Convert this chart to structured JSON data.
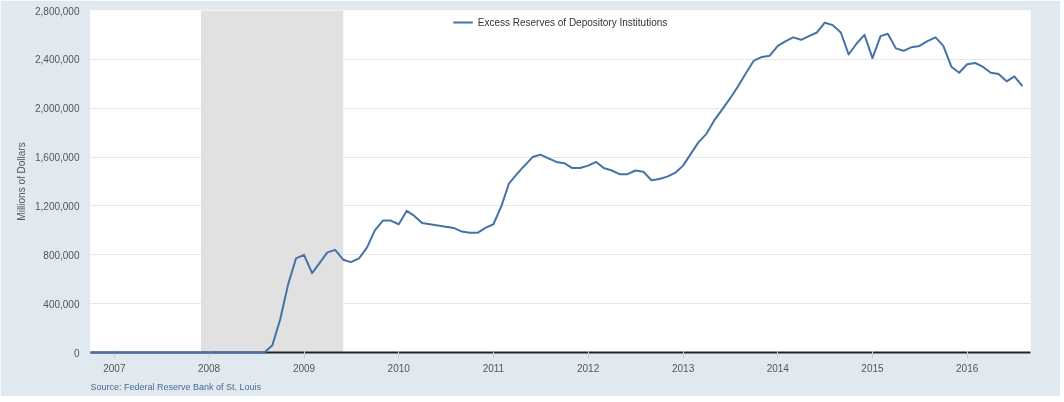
{
  "chart_data": {
    "type": "line",
    "ylabel": "Millions of Dollars",
    "annotations": [
      "Source: Federal Reserve Bank of St. Louis"
    ],
    "x": [
      "2006-10",
      "2007-06",
      "2008-01",
      "2008-08",
      "2008-09",
      "2008-10",
      "2008-11",
      "2008-12",
      "2009-01",
      "2009-02",
      "2009-03",
      "2009-04",
      "2009-05",
      "2009-06",
      "2009-07",
      "2009-08",
      "2009-09",
      "2009-10",
      "2009-11",
      "2009-12",
      "2010-01",
      "2010-02",
      "2010-03",
      "2010-04",
      "2010-05",
      "2010-06",
      "2010-07",
      "2010-08",
      "2010-09",
      "2010-10",
      "2010-11",
      "2010-12",
      "2011-01",
      "2011-02",
      "2011-03",
      "2011-04",
      "2011-05",
      "2011-06",
      "2011-07",
      "2011-08",
      "2011-09",
      "2011-10",
      "2011-11",
      "2011-12",
      "2012-01",
      "2012-02",
      "2012-03",
      "2012-04",
      "2012-05",
      "2012-06",
      "2012-07",
      "2012-08",
      "2012-09",
      "2012-10",
      "2012-11",
      "2012-12",
      "2013-01",
      "2013-02",
      "2013-03",
      "2013-04",
      "2013-05",
      "2013-06",
      "2013-07",
      "2013-08",
      "2013-09",
      "2013-10",
      "2013-11",
      "2013-12",
      "2014-01",
      "2014-02",
      "2014-03",
      "2014-04",
      "2014-05",
      "2014-06",
      "2014-07",
      "2014-08",
      "2014-09",
      "2014-10",
      "2014-11",
      "2014-12",
      "2015-01",
      "2015-02",
      "2015-03",
      "2015-04",
      "2015-05",
      "2015-06",
      "2015-07",
      "2015-08",
      "2015-09",
      "2015-10",
      "2015-11",
      "2015-12",
      "2016-01",
      "2016-02",
      "2016-03",
      "2016-04",
      "2016-05",
      "2016-06",
      "2016-07",
      "2016-08"
    ],
    "series": [
      {
        "name": "Excess Reserves of Depository Institutions",
        "color": "#4572a7",
        "values": [
          0,
          0,
          0,
          0,
          60000,
          270000,
          560000,
          770000,
          800000,
          650000,
          730000,
          820000,
          840000,
          760000,
          740000,
          770000,
          860000,
          1000000,
          1080000,
          1080000,
          1050000,
          1160000,
          1120000,
          1060000,
          1050000,
          1040000,
          1030000,
          1020000,
          990000,
          980000,
          980000,
          1020000,
          1050000,
          1200000,
          1380000,
          1460000,
          1530000,
          1600000,
          1620000,
          1590000,
          1560000,
          1550000,
          1510000,
          1510000,
          1530000,
          1560000,
          1510000,
          1490000,
          1460000,
          1460000,
          1490000,
          1480000,
          1410000,
          1420000,
          1440000,
          1470000,
          1530000,
          1630000,
          1720000,
          1790000,
          1900000,
          1990000,
          2080000,
          2180000,
          2290000,
          2390000,
          2420000,
          2430000,
          2510000,
          2550000,
          2580000,
          2560000,
          2590000,
          2620000,
          2700000,
          2680000,
          2620000,
          2440000,
          2530000,
          2600000,
          2410000,
          2590000,
          2610000,
          2490000,
          2470000,
          2500000,
          2510000,
          2550000,
          2580000,
          2510000,
          2340000,
          2290000,
          2360000,
          2370000,
          2340000,
          2290000,
          2280000,
          2220000,
          2260000,
          2180000
        ]
      }
    ],
    "xlim": [
      "2006-10",
      "2016-09"
    ],
    "xticks": [
      "2007",
      "2008",
      "2009",
      "2010",
      "2011",
      "2012",
      "2013",
      "2014",
      "2015",
      "2016"
    ],
    "ylim": [
      0,
      2800000
    ],
    "yticks": [
      {
        "value": 0,
        "label": "0"
      },
      {
        "value": 400000,
        "label": "400,000"
      },
      {
        "value": 800000,
        "label": "800,000"
      },
      {
        "value": 1200000,
        "label": "1,200,000"
      },
      {
        "value": 1600000,
        "label": "1,600,000"
      },
      {
        "value": 2000000,
        "label": "2,000,000"
      },
      {
        "value": 2400000,
        "label": "2,400,000"
      },
      {
        "value": 2800000,
        "label": "2,800,000"
      }
    ],
    "bands": [
      {
        "axis": "x",
        "from": "2007-12",
        "to": "2009-06",
        "color": "#e1e1e1"
      }
    ],
    "grid": "y",
    "legend": "top",
    "marker": "none",
    "line_style": "solid"
  }
}
